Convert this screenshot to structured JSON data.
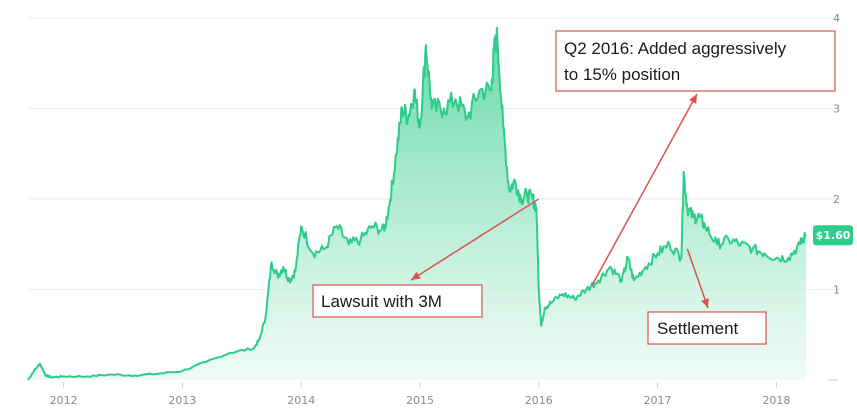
{
  "chart_data": {
    "type": "area",
    "title": "",
    "xlabel": "",
    "ylabel": "",
    "x_ticks": [
      "2012",
      "2013",
      "2014",
      "2015",
      "2016",
      "2017",
      "2018"
    ],
    "y_ticks": [
      "1",
      "2",
      "3",
      "4"
    ],
    "ylim": [
      0,
      4
    ],
    "xlim": [
      2011.7,
      2018.3
    ],
    "grid": "horizontal",
    "colors": {
      "line": "#2ecc8a",
      "fill_top": "#2ecc8a",
      "fill_bottom": "#e8f9f1",
      "annotation": "#d9534f"
    },
    "series": [
      {
        "name": "",
        "x": [
          2011.7,
          2011.75,
          2011.8,
          2011.85,
          2011.9,
          2012.0,
          2012.2,
          2012.4,
          2012.6,
          2012.8,
          2013.0,
          2013.2,
          2013.4,
          2013.6,
          2013.65,
          2013.7,
          2013.75,
          2013.8,
          2013.85,
          2013.9,
          2013.95,
          2014.0,
          2014.1,
          2014.2,
          2014.3,
          2014.4,
          2014.5,
          2014.6,
          2014.7,
          2014.75,
          2014.8,
          2014.85,
          2014.9,
          2014.95,
          2015.0,
          2015.05,
          2015.1,
          2015.2,
          2015.3,
          2015.4,
          2015.5,
          2015.6,
          2015.62,
          2015.65,
          2015.7,
          2015.75,
          2015.8,
          2015.85,
          2015.9,
          2015.95,
          2015.98,
          2016.0,
          2016.02,
          2016.05,
          2016.1,
          2016.2,
          2016.3,
          2016.4,
          2016.5,
          2016.6,
          2016.7,
          2016.75,
          2016.8,
          2016.9,
          2017.0,
          2017.1,
          2017.2,
          2017.22,
          2017.25,
          2017.3,
          2017.35,
          2017.4,
          2017.5,
          2017.6,
          2017.7,
          2017.8,
          2017.9,
          2018.0,
          2018.1,
          2018.2,
          2018.25
        ],
        "y": [
          0.0,
          0.1,
          0.18,
          0.05,
          0.03,
          0.04,
          0.04,
          0.06,
          0.05,
          0.07,
          0.1,
          0.2,
          0.3,
          0.35,
          0.45,
          0.7,
          1.3,
          1.15,
          1.25,
          1.1,
          1.2,
          1.7,
          1.4,
          1.45,
          1.7,
          1.5,
          1.55,
          1.7,
          1.65,
          2.0,
          2.5,
          3.0,
          2.9,
          3.2,
          2.8,
          3.7,
          3.0,
          3.0,
          3.1,
          2.9,
          3.2,
          3.2,
          3.6,
          3.8,
          2.8,
          2.1,
          2.2,
          2.0,
          2.05,
          2.0,
          1.9,
          1.0,
          0.6,
          0.8,
          0.85,
          0.95,
          0.9,
          1.0,
          1.1,
          1.25,
          1.1,
          1.35,
          1.1,
          1.25,
          1.4,
          1.5,
          1.35,
          2.3,
          1.9,
          1.8,
          1.8,
          1.7,
          1.5,
          1.55,
          1.5,
          1.45,
          1.4,
          1.35,
          1.35,
          1.5,
          1.6
        ]
      }
    ],
    "current_value_label": "$1.60",
    "annotations": [
      {
        "text": "Lawsuit with 3M",
        "arrow_to": [
          2016.0,
          2.0
        ]
      },
      {
        "text": "Q2 2016: Added aggressively",
        "text2": "to 15% position",
        "arrow_to": [
          2016.45,
          1.05
        ]
      },
      {
        "text": "Settlement",
        "arrow_to": [
          2017.25,
          1.45
        ]
      }
    ]
  }
}
